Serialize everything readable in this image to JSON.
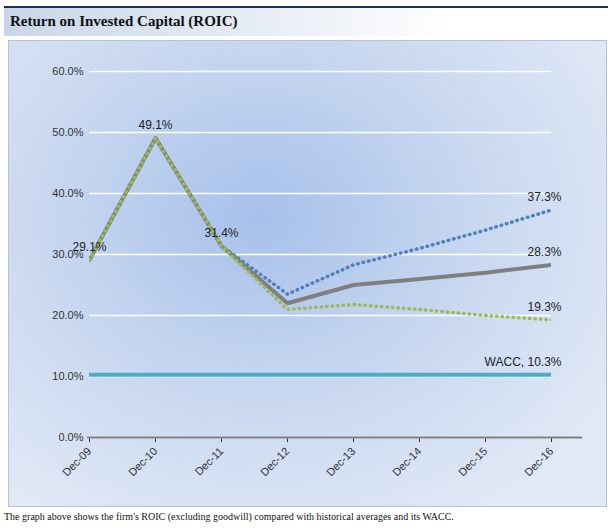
{
  "chart_data": {
    "type": "line",
    "title": "Return on Invested Capital (ROIC)",
    "caption": "The graph above shows the firm's ROIC (excluding goodwill) compared with historical averages and its WACC.",
    "categories": [
      "Dec-09",
      "Dec-10",
      "Dec-11",
      "Dec-12",
      "Dec-13",
      "Dec-14",
      "Dec-15",
      "Dec-16"
    ],
    "series": [
      {
        "color": "#4f81bd",
        "line_style": "dotted",
        "values": [
          29.1,
          49.1,
          31.4,
          23.5,
          28.3,
          31.0,
          34.0,
          37.3
        ],
        "value_labels": [
          null,
          null,
          null,
          null,
          null,
          null,
          null,
          "37.3%"
        ]
      },
      {
        "color": "#7f7f7f",
        "line_style": "solid",
        "values": [
          29.1,
          49.1,
          31.4,
          22.0,
          25.0,
          26.0,
          27.0,
          28.3
        ],
        "value_labels": [
          "29.1%",
          "49.1%",
          "31.4%",
          null,
          null,
          null,
          null,
          "28.3%"
        ]
      },
      {
        "color": "#9bbb59",
        "line_style": "dotted",
        "values": [
          29.1,
          49.1,
          31.4,
          21.0,
          21.8,
          21.0,
          20.0,
          19.3
        ],
        "value_labels": [
          null,
          null,
          null,
          null,
          null,
          null,
          null,
          "19.3%"
        ]
      },
      {
        "color": "#4bacc6",
        "line_style": "solid",
        "values": [
          10.3,
          10.3,
          10.3,
          10.3,
          10.3,
          10.3,
          10.3,
          10.3
        ],
        "value_labels": [
          null,
          null,
          null,
          null,
          null,
          null,
          null,
          "WACC, 10.3%"
        ]
      }
    ],
    "ylim": [
      0,
      60
    ],
    "yticks": [
      {
        "value": 0,
        "label": "0.0%"
      },
      {
        "value": 10,
        "label": "10.0%"
      },
      {
        "value": 20,
        "label": "20.0%"
      },
      {
        "value": 30,
        "label": "30.0%"
      },
      {
        "value": 40,
        "label": "40.0%"
      },
      {
        "value": 50,
        "label": "50.0%"
      },
      {
        "value": 60,
        "label": "60.0%"
      }
    ],
    "grid": true,
    "data_labels": true
  }
}
